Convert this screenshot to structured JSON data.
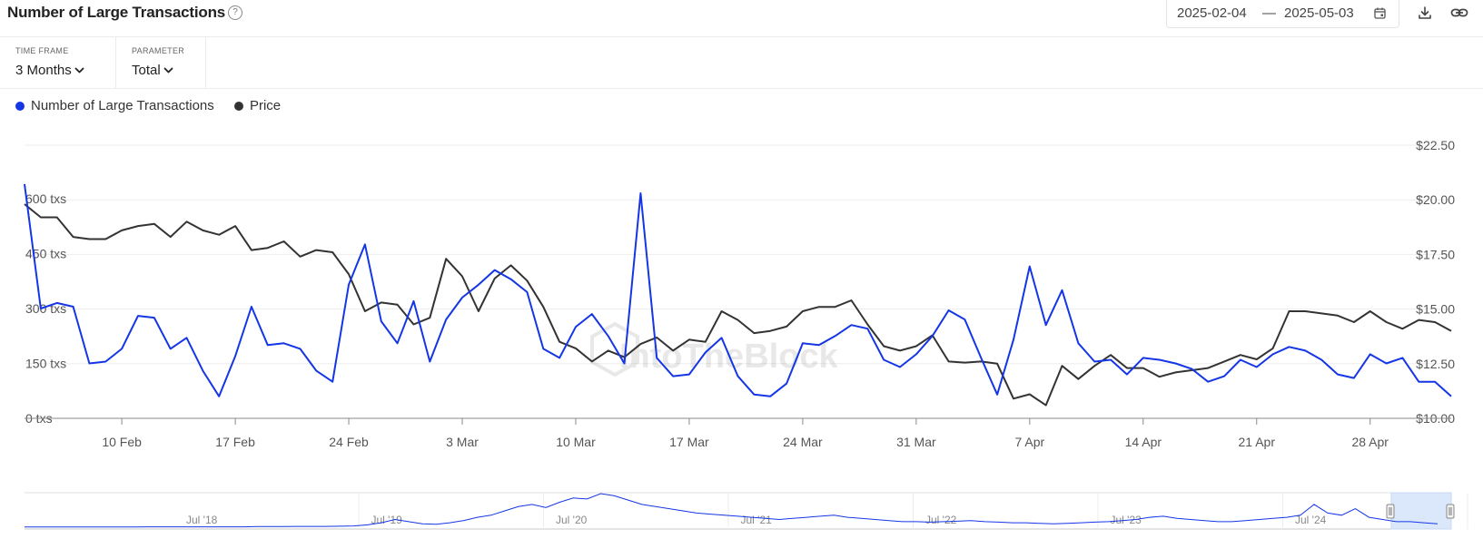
{
  "header": {
    "title": "Number of Large Transactions",
    "date_from": "2025-02-04",
    "date_sep": "—",
    "date_to": "2025-05-03"
  },
  "controls": {
    "timeframe_label": "TIME FRAME",
    "timeframe_value": "3 Months",
    "parameter_label": "PARAMETER",
    "parameter_value": "Total"
  },
  "legend": [
    {
      "name": "Number of Large Transactions",
      "color": "#1436e6"
    },
    {
      "name": "Price",
      "color": "#333333"
    }
  ],
  "watermark": "IntoTheBlock",
  "icons": [
    "help-icon",
    "calendar-icon",
    "download-icon",
    "link-icon",
    "chevron-down-icon"
  ],
  "chart_data": {
    "type": "line",
    "x_tick_labels": [
      "10 Feb",
      "17 Feb",
      "24 Feb",
      "3 Mar",
      "10 Mar",
      "17 Mar",
      "24 Mar",
      "31 Mar",
      "7 Apr",
      "14 Apr",
      "21 Apr",
      "28 Apr"
    ],
    "y_left_ticks": [
      "0 txs",
      "150 txs",
      "300 txs",
      "450 txs",
      "600 txs"
    ],
    "y_left_range": [
      0,
      600
    ],
    "y_right_ticks": [
      "$10.00",
      "$12.50",
      "$15.00",
      "$17.50",
      "$20.00",
      "$22.50"
    ],
    "y_right_range": [
      10,
      22.5
    ],
    "grid": true,
    "x_range": [
      "2025-02-04",
      "2025-05-03"
    ],
    "series": [
      {
        "name": "Number of Large Transactions",
        "color": "#1436e6",
        "axis": "left",
        "values": [
          640,
          300,
          315,
          305,
          150,
          155,
          190,
          280,
          275,
          190,
          220,
          130,
          60,
          170,
          305,
          200,
          205,
          190,
          130,
          100,
          365,
          475,
          265,
          205,
          320,
          155,
          270,
          330,
          365,
          405,
          380,
          345,
          190,
          165,
          250,
          285,
          225,
          150,
          615,
          165,
          115,
          120,
          180,
          220,
          115,
          65,
          60,
          95,
          205,
          200,
          225,
          255,
          245,
          160,
          140,
          175,
          225,
          295,
          270,
          165,
          65,
          215,
          415,
          255,
          350,
          205,
          155,
          160,
          120,
          165,
          160,
          150,
          135,
          100,
          115,
          160,
          140,
          175,
          195,
          185,
          160,
          120,
          110,
          175,
          150,
          165,
          100,
          100,
          60
        ]
      },
      {
        "name": "Price",
        "color": "#333333",
        "axis": "right",
        "values": [
          19.8,
          19.2,
          19.2,
          18.3,
          18.2,
          18.2,
          18.6,
          18.8,
          18.9,
          18.3,
          19.0,
          18.6,
          18.4,
          18.8,
          17.7,
          17.8,
          18.1,
          17.4,
          17.7,
          17.6,
          16.6,
          14.9,
          15.3,
          15.2,
          14.3,
          14.6,
          17.3,
          16.5,
          14.9,
          16.4,
          17.0,
          16.3,
          15.1,
          13.5,
          13.2,
          12.6,
          13.1,
          12.8,
          13.4,
          13.7,
          13.1,
          13.6,
          13.5,
          14.9,
          14.5,
          13.9,
          14.0,
          14.2,
          14.9,
          15.1,
          15.1,
          15.4,
          14.3,
          13.3,
          13.1,
          13.3,
          13.8,
          12.6,
          12.55,
          12.6,
          12.5,
          10.9,
          11.1,
          10.6,
          12.4,
          11.8,
          12.4,
          12.9,
          12.3,
          12.3,
          11.9,
          12.1,
          12.2,
          12.3,
          12.6,
          12.9,
          12.7,
          13.2,
          14.9,
          14.9,
          14.8,
          14.7,
          14.4,
          14.9,
          14.4,
          14.1,
          14.5,
          14.4,
          14.0
        ]
      }
    ]
  },
  "navigator": {
    "labels": [
      "Jul '18",
      "Jul '19",
      "Jul '20",
      "Jul '21",
      "Jul '22",
      "Jul '23",
      "Jul '24"
    ],
    "values": [
      5,
      5,
      5,
      5,
      5,
      5,
      5,
      5,
      5,
      6,
      6,
      6,
      6,
      6,
      6,
      6,
      6,
      7,
      7,
      7,
      8,
      8,
      8,
      9,
      10,
      15,
      25,
      40,
      30,
      20,
      18,
      25,
      35,
      50,
      60,
      80,
      100,
      110,
      95,
      120,
      140,
      135,
      160,
      150,
      130,
      110,
      100,
      90,
      80,
      70,
      65,
      60,
      55,
      50,
      45,
      40,
      45,
      50,
      55,
      60,
      50,
      45,
      40,
      35,
      30,
      30,
      28,
      30,
      32,
      35,
      30,
      28,
      25,
      25,
      22,
      20,
      22,
      25,
      28,
      30,
      35,
      40,
      50,
      55,
      45,
      40,
      35,
      30,
      30,
      35,
      40,
      45,
      50,
      60,
      110,
      70,
      60,
      90,
      50,
      40,
      30,
      30,
      25,
      20
    ]
  }
}
